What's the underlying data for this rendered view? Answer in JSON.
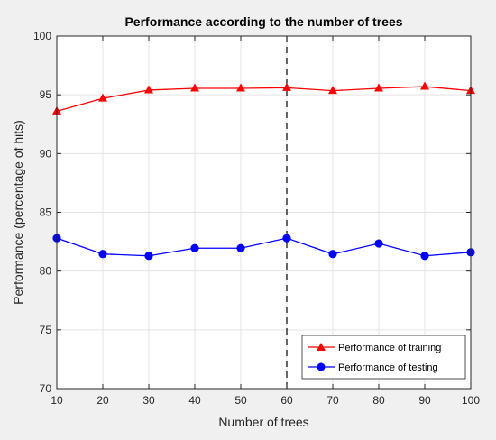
{
  "chart_data": {
    "type": "line",
    "title": "Performance according to the number of trees",
    "xlabel": "Number of trees",
    "ylabel": "Performance (percentage of hits)",
    "x": [
      10,
      20,
      30,
      40,
      50,
      60,
      70,
      80,
      90,
      100
    ],
    "xlim": [
      10,
      100
    ],
    "ylim": [
      70,
      100
    ],
    "xticks": [
      10,
      20,
      30,
      40,
      50,
      60,
      70,
      80,
      90,
      100
    ],
    "yticks": [
      70,
      75,
      80,
      85,
      90,
      95,
      100
    ],
    "grid": true,
    "legend_position": "bottom-right",
    "reference_line_x": 60,
    "series": [
      {
        "name": "Performance of training",
        "color": "#ff0000",
        "marker": "triangle",
        "values": [
          93.6,
          94.7,
          95.4,
          95.55,
          95.55,
          95.6,
          95.35,
          95.55,
          95.7,
          95.35
        ]
      },
      {
        "name": "Performance of testing",
        "color": "#0000ff",
        "marker": "circle",
        "values": [
          82.8,
          81.45,
          81.3,
          81.95,
          81.95,
          82.8,
          81.45,
          82.35,
          81.3,
          81.6
        ]
      }
    ]
  }
}
